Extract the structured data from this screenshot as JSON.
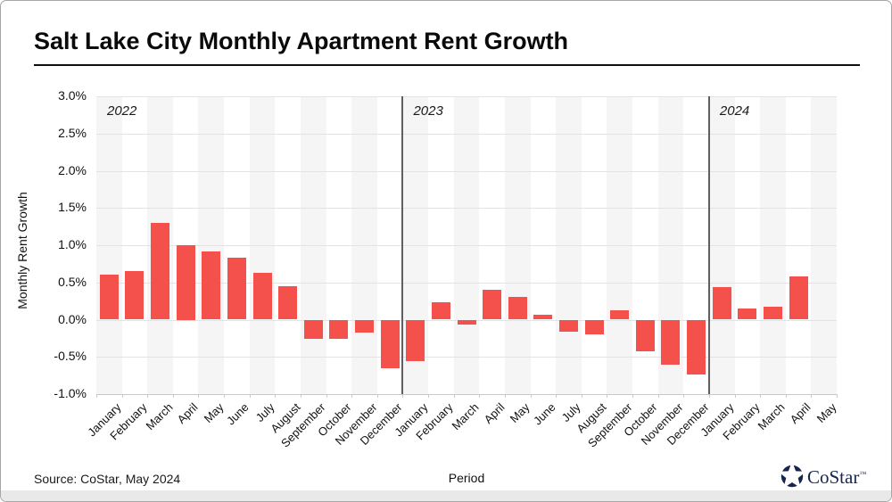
{
  "title": "Salt Lake City Monthly Apartment Rent Growth",
  "source_note": "Source: CoStar, May 2024",
  "logo": {
    "text": "CoStar",
    "tm": "™"
  },
  "chart_data": {
    "type": "bar",
    "title": "Salt Lake City Monthly Apartment Rent Growth",
    "xlabel": "Period",
    "ylabel": "Monthly Rent Growth",
    "ylim": [
      -1.0,
      3.0
    ],
    "ytick_step": 0.5,
    "ytick_labels": [
      "3.0%",
      "2.5%",
      "2.0%",
      "1.5%",
      "1.0%",
      "0.5%",
      "0.0%",
      "-0.5%",
      "-1.0%"
    ],
    "grid": true,
    "bar_color": "#f4514c",
    "stripe_color": "#f5f5f5",
    "categories": [
      "January",
      "February",
      "March",
      "April",
      "May",
      "June",
      "July",
      "August",
      "September",
      "October",
      "November",
      "December",
      "January",
      "February",
      "March",
      "April",
      "May",
      "June",
      "July",
      "August",
      "September",
      "October",
      "November",
      "December",
      "January",
      "February",
      "March",
      "April",
      "May"
    ],
    "years": [
      2022,
      2022,
      2022,
      2022,
      2022,
      2022,
      2022,
      2022,
      2022,
      2022,
      2022,
      2022,
      2023,
      2023,
      2023,
      2023,
      2023,
      2023,
      2023,
      2023,
      2023,
      2023,
      2023,
      2023,
      2024,
      2024,
      2024,
      2024,
      2024
    ],
    "values": [
      0.6,
      0.65,
      1.3,
      1.0,
      0.92,
      0.83,
      0.63,
      0.45,
      -0.26,
      -0.26,
      -0.17,
      -0.65,
      -0.56,
      0.23,
      -0.07,
      0.4,
      0.3,
      0.07,
      -0.16,
      -0.2,
      0.12,
      -0.42,
      -0.6,
      -0.74,
      0.44,
      0.15,
      0.17,
      0.58,
      null
    ],
    "year_sections": [
      {
        "label": "2022",
        "start_index": 0
      },
      {
        "label": "2023",
        "start_index": 12
      },
      {
        "label": "2024",
        "start_index": 24
      }
    ]
  }
}
